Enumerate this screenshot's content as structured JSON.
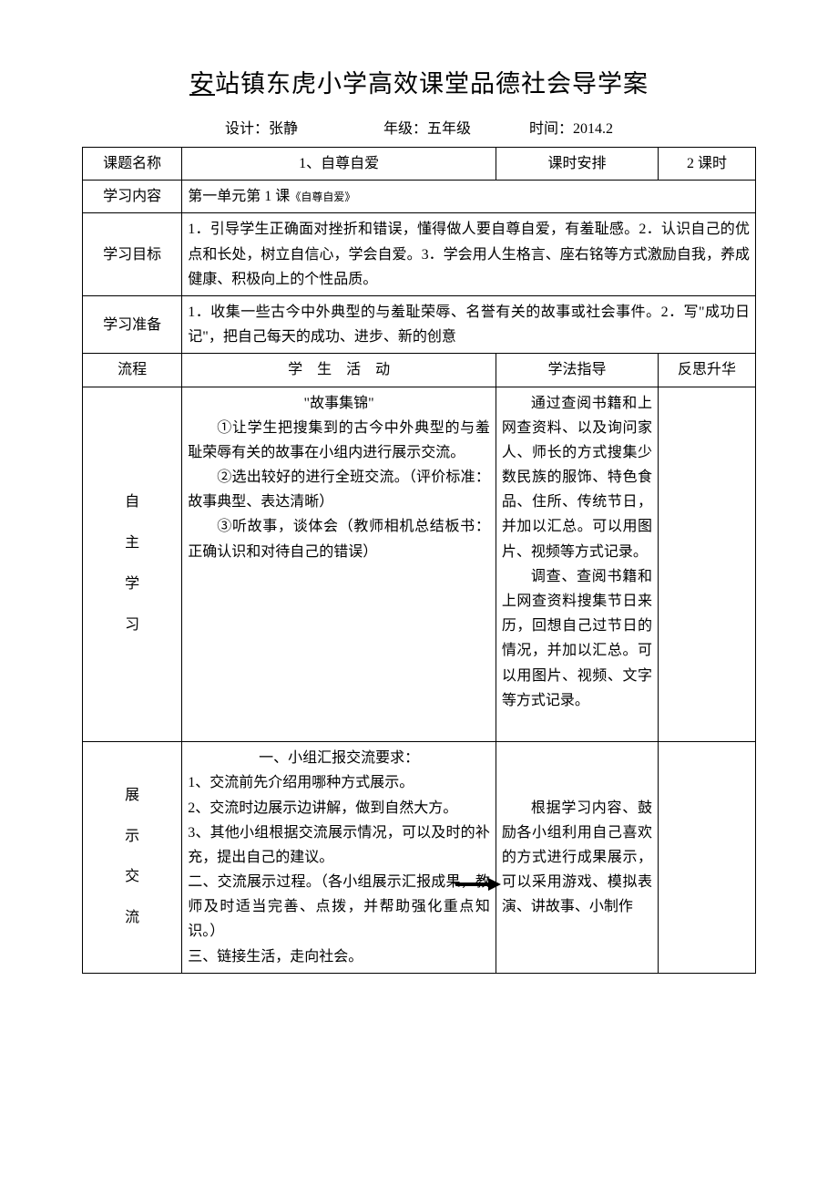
{
  "title_prefix_underlined": "安",
  "title_rest": "站镇东虎小学高效课堂品德社会导学案",
  "meta": {
    "designer_label": "设计：",
    "designer_value": "张静",
    "grade_label": "年级：",
    "grade_value": "五年级",
    "time_label": "时间：",
    "time_value": "2014.2"
  },
  "rows": {
    "topic": {
      "label": "课题名称",
      "value": "1、自尊自爱",
      "schedule_label": "课时安排",
      "schedule_value": "2 课时"
    },
    "content": {
      "label": "学习内容",
      "value_prefix": "第一单元第 1 课",
      "value_small": "《自尊自爱》"
    },
    "goal": {
      "label": "学习目标",
      "value": "1．引导学生正确面对挫折和错误，懂得做人要自尊自爱，有羞耻感。2．认识自己的优点和长处，树立自信心，学会自爱。3．学会用人生格言、座右铭等方式激励自我，养成健康、积极向上的个性品质。"
    },
    "prep": {
      "label": "学习准备",
      "value": "1．收集一些古今中外典型的与羞耻荣辱、名誉有关的故事或社会事件。2．写\"成功日记\"，把自己每天的成功、进步、新的创意"
    },
    "header2": {
      "c1": "流程",
      "c2": "学　生　活　动",
      "c3": "学法指导",
      "c4": "反思升华"
    },
    "selfstudy": {
      "label_chars": [
        "自",
        "主",
        "学",
        "习"
      ],
      "activity": {
        "l1": "\"故事集锦\"",
        "l2": "①让学生把搜集到的古今中外典型的与羞耻荣辱有关的故事在小组内进行展示交流。",
        "l3": "②选出较好的进行全班交流。（评价标准：故事典型、表达清晰）",
        "l4": "③听故事，谈体会（教师相机总结板书：正确认识和对待自己的错误）"
      },
      "guide": {
        "p1": "通过查阅书籍和上网查资料、以及询问家人、师长的方式搜集少数民族的服饰、特色食品、住所、传统节日，并加以汇总。可以用图片、视频等方式记录。",
        "p2": "调查、查阅书籍和上网查资料搜集节日来历，回想自己过节日的情况，并加以汇总。可以用图片、视频、文字等方式记录。"
      }
    },
    "showcase": {
      "label_chars": [
        "展",
        "示",
        "交",
        "流"
      ],
      "activity": {
        "h1": "一、小组汇报交流要求：",
        "l1": "1、交流前先介绍用哪种方式展示。",
        "l2": "2、交流时边展示边讲解，做到自然大方。",
        "l3": "3、其他小组根据交流展示情况，可以及时的补充，提出自己的建议。",
        "h2": "二、交流展示过程。（各小组展示汇报成果，教师及时适当完善、点拨，并帮助强化重点知识。）",
        "h3": "三、链接生活，走向社会。"
      },
      "guide": "根据学习内容、鼓励各小组利用自己喜欢的方式进行成果展示，可以采用游戏、模拟表演、讲故事、小制作"
    }
  }
}
